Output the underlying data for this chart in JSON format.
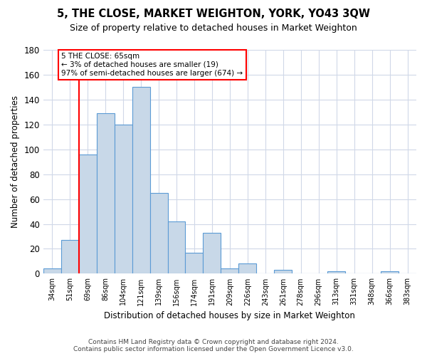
{
  "title": "5, THE CLOSE, MARKET WEIGHTON, YORK, YO43 3QW",
  "subtitle": "Size of property relative to detached houses in Market Weighton",
  "xlabel": "Distribution of detached houses by size in Market Weighton",
  "ylabel": "Number of detached properties",
  "bar_color": "#c8d8e8",
  "bar_edge_color": "#5b9bd5",
  "categories": [
    "34sqm",
    "51sqm",
    "69sqm",
    "86sqm",
    "104sqm",
    "121sqm",
    "139sqm",
    "156sqm",
    "174sqm",
    "191sqm",
    "209sqm",
    "226sqm",
    "243sqm",
    "261sqm",
    "278sqm",
    "296sqm",
    "313sqm",
    "331sqm",
    "348sqm",
    "366sqm",
    "383sqm"
  ],
  "values": [
    4,
    27,
    96,
    129,
    120,
    150,
    65,
    42,
    17,
    33,
    4,
    8,
    0,
    3,
    0,
    0,
    2,
    0,
    0,
    2,
    0
  ],
  "ylim": [
    0,
    180
  ],
  "yticks": [
    0,
    20,
    40,
    60,
    80,
    100,
    120,
    140,
    160,
    180
  ],
  "annotation_line1": "5 THE CLOSE: 65sqm",
  "annotation_line2": "← 3% of detached houses are smaller (19)",
  "annotation_line3": "97% of semi-detached houses are larger (674) →",
  "red_line_x": 1.5,
  "footer_text": "Contains HM Land Registry data © Crown copyright and database right 2024.\nContains public sector information licensed under the Open Government Licence v3.0.",
  "background_color": "#ffffff",
  "grid_color": "#d0d8e8"
}
